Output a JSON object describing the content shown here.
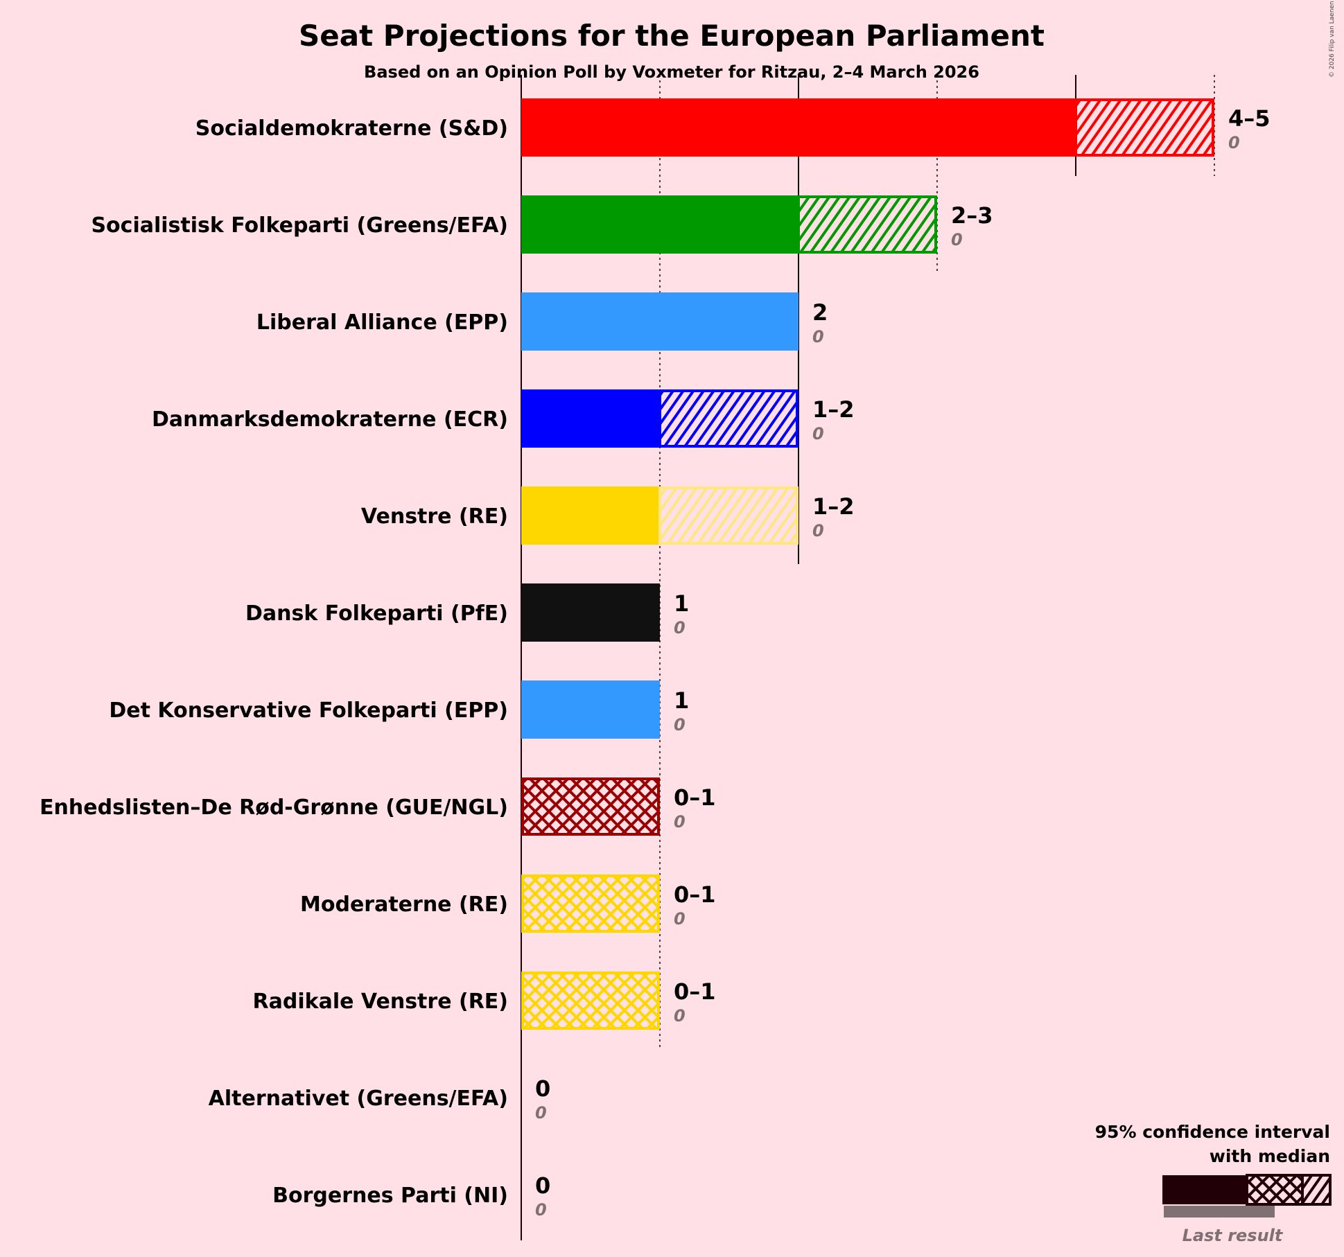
{
  "chart_data": {
    "type": "bar",
    "orientation": "horizontal",
    "title": "Seat Projections for the European Parliament",
    "subtitle": "Based on an Opinion Poll by Voxmeter for Ritzau, 2–4 March 2026",
    "copyright": "© 2026 Filip van Laenen",
    "xlim": [
      0,
      5
    ],
    "categories": [
      "Socialdemokraterne (S&D)",
      "Socialistisk Folkeparti (Greens/EFA)",
      "Liberal Alliance (EPP)",
      "Danmarksdemokraterne (ECR)",
      "Venstre (RE)",
      "Dansk Folkeparti (PfE)",
      "Det Konservative Folkeparti (EPP)",
      "Enhedslisten–De Rød-Grønne (GUE/NGL)",
      "Moderaterne (RE)",
      "Radikale Venstre (RE)",
      "Alternativet (Greens/EFA)",
      "Borgernes Parti (NI)"
    ],
    "parties": [
      {
        "name": "Socialdemokraterne (S&D)",
        "color": "#FF0000",
        "lower": 4,
        "median": 4,
        "upper": 5,
        "label": "4–5",
        "last": 0,
        "last_label": "0"
      },
      {
        "name": "Socialistisk Folkeparti (Greens/EFA)",
        "color": "#009900",
        "lower": 2,
        "median": 2,
        "upper": 3,
        "label": "2–3",
        "last": 0,
        "last_label": "0"
      },
      {
        "name": "Liberal Alliance (EPP)",
        "color": "#3399FF",
        "lower": 2,
        "median": 2,
        "upper": 2,
        "label": "2",
        "last": 0,
        "last_label": "0"
      },
      {
        "name": "Danmarksdemokraterne (ECR)",
        "color": "#0000FF",
        "lower": 1,
        "median": 1,
        "upper": 2,
        "label": "1–2",
        "last": 0,
        "last_label": "0"
      },
      {
        "name": "Venstre (RE)",
        "color": "#FFD700",
        "lower": 1,
        "median": 1,
        "upper": 2,
        "label": "1–2",
        "last": 0,
        "last_label": "0",
        "faded": true
      },
      {
        "name": "Dansk Folkeparti (PfE)",
        "color": "#111111",
        "lower": 1,
        "median": 1,
        "upper": 1,
        "label": "1",
        "last": 0,
        "last_label": "0"
      },
      {
        "name": "Det Konservative Folkeparti (EPP)",
        "color": "#3399FF",
        "lower": 1,
        "median": 1,
        "upper": 1,
        "label": "1",
        "last": 0,
        "last_label": "0"
      },
      {
        "name": "Enhedslisten–De Rød-Grønne (GUE/NGL)",
        "color": "#990000",
        "lower": 0,
        "median": 1,
        "upper": 1,
        "label": "0–1",
        "last": 0,
        "last_label": "0"
      },
      {
        "name": "Moderaterne (RE)",
        "color": "#FFD700",
        "lower": 0,
        "median": 1,
        "upper": 1,
        "label": "0–1",
        "last": 0,
        "last_label": "0"
      },
      {
        "name": "Radikale Venstre (RE)",
        "color": "#FFD700",
        "lower": 0,
        "median": 1,
        "upper": 1,
        "label": "0–1",
        "last": 0,
        "last_label": "0"
      },
      {
        "name": "Alternativet (Greens/EFA)",
        "color": "#3399FF",
        "lower": 0,
        "median": 0,
        "upper": 0,
        "label": "0",
        "last": 0,
        "last_label": "0"
      },
      {
        "name": "Borgernes Parti (NI)",
        "color": "#111111",
        "lower": 0,
        "median": 0,
        "upper": 0,
        "label": "0",
        "last": 0,
        "last_label": "0"
      }
    ],
    "legend": {
      "line1": "95% confidence interval",
      "line2": "with median",
      "last_result": "Last result",
      "placement": "bottom-right"
    },
    "grid": true
  }
}
